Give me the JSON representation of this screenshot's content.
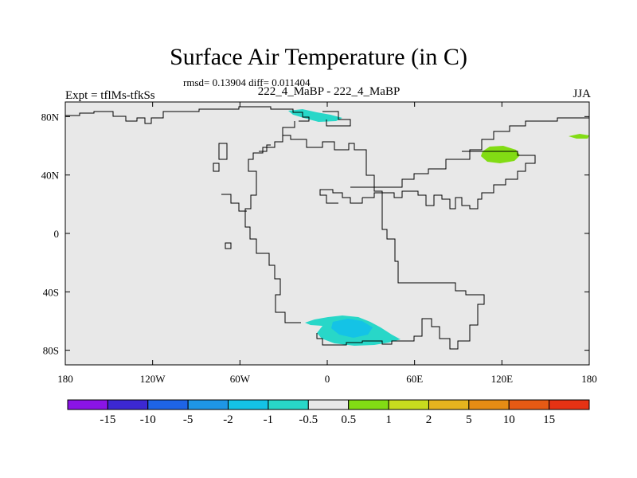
{
  "title": "Surface Air Temperature (in C)",
  "stats": "rmsd= 0.13904 diff= 0.011404",
  "experiment_label": "Expt = tflMs-tfkSs",
  "comparison_label": "222_4_MaBP - 222_4_MaBP",
  "season_label": "JJA",
  "axes": {
    "x_ticks": [
      "180",
      "120W",
      "60W",
      "0",
      "60E",
      "120E",
      "180"
    ],
    "y_ticks": [
      "80N",
      "40N",
      "0",
      "40S",
      "80S"
    ]
  },
  "colorbar": {
    "labels": [
      "-15",
      "-10",
      "-5",
      "-2",
      "-1",
      "-0.5",
      "0.5",
      "1",
      "2",
      "5",
      "10",
      "15"
    ],
    "colors": [
      "#8a14e6",
      "#3c28d2",
      "#1e64e6",
      "#1e96e6",
      "#14c3e6",
      "#28d7c8",
      "#e8e8e8",
      "#82dc14",
      "#c8dc1e",
      "#e6b41e",
      "#e68c14",
      "#e65a14",
      "#e63214"
    ]
  },
  "map": {
    "background": "#e8e8e8",
    "anomaly_regions": [
      {
        "name": "Arctic cool patch",
        "color": "#28d7c8"
      },
      {
        "name": "Siberian warm patch",
        "color": "#82dc14"
      },
      {
        "name": "Far-east warm patch",
        "color": "#82dc14"
      },
      {
        "name": "Antarctic cool patch",
        "color": "#28d7c8"
      },
      {
        "name": "Antarctic cooler core",
        "color": "#14c3e6"
      }
    ]
  }
}
